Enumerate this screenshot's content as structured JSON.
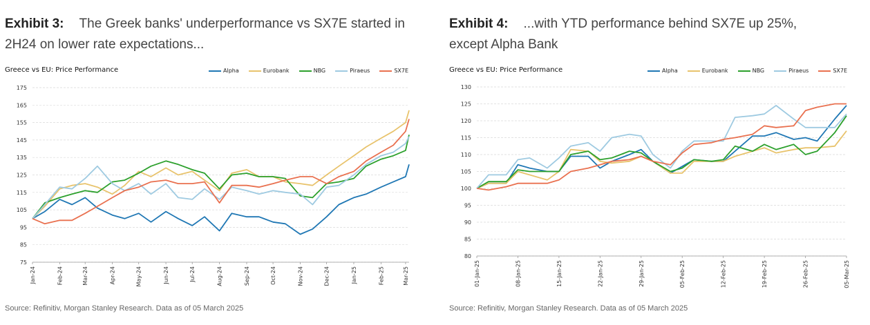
{
  "exhibits": [
    {
      "number": "Exhibit 3:",
      "heading": "The Greek banks' underperformance vs SX7E started in 2H24 on lower rate expectations...",
      "source": "Source: Refinitiv, Morgan Stanley Research. Data as of 05 March 2025"
    },
    {
      "number": "Exhibit 4:",
      "heading": "...with YTD performance behind SX7E up 25%, except Alpha Bank",
      "source": "Source: Refinitiv, Morgan Stanley Research. Data as of 05 March 2025"
    }
  ],
  "chart_data": [
    {
      "type": "line",
      "title": "Greece vs EU: Price Performance",
      "legend_position": "top-right",
      "grid": true,
      "ylim": [
        75,
        175
      ],
      "yticks": [
        75,
        85,
        95,
        105,
        115,
        125,
        135,
        145,
        155,
        165,
        175
      ],
      "x_ticks": [
        "Jan-24",
        "Feb-24",
        "Mar-24",
        "Apr-24",
        "May-24",
        "Jun-24",
        "Jul-24",
        "Aug-24",
        "Sep-24",
        "Oct-24",
        "Nov-24",
        "Dec-24",
        "Jan-25",
        "Feb-25",
        "Mar-25"
      ],
      "x": [
        "2024-01-01",
        "2024-01-15",
        "2024-02-01",
        "2024-02-15",
        "2024-03-01",
        "2024-03-15",
        "2024-04-01",
        "2024-04-15",
        "2024-05-01",
        "2024-05-15",
        "2024-06-01",
        "2024-06-15",
        "2024-07-01",
        "2024-07-15",
        "2024-08-01",
        "2024-08-15",
        "2024-09-01",
        "2024-09-15",
        "2024-10-01",
        "2024-10-15",
        "2024-11-01",
        "2024-11-15",
        "2024-12-01",
        "2024-12-15",
        "2025-01-01",
        "2025-01-15",
        "2025-02-01",
        "2025-02-15",
        "2025-03-01",
        "2025-03-05"
      ],
      "series": [
        {
          "name": "Alpha",
          "color": "#1f77b4",
          "values": [
            100,
            104,
            111,
            108,
            112,
            106,
            102,
            100,
            103,
            98,
            104,
            100,
            96,
            101,
            93,
            103,
            101,
            101,
            98,
            97,
            91,
            94,
            101,
            108,
            112,
            114,
            118,
            121,
            124,
            131
          ]
        },
        {
          "name": "Eurobank",
          "color": "#e8c36c",
          "values": [
            100,
            107,
            117,
            119,
            120,
            118,
            114,
            119,
            127,
            124,
            129,
            125,
            127,
            122,
            116,
            126,
            128,
            124,
            124,
            121,
            120,
            119,
            125,
            130,
            136,
            141,
            146,
            150,
            155,
            162
          ]
        },
        {
          "name": "NBG",
          "color": "#2ca02c",
          "values": [
            100,
            109,
            112,
            114,
            116,
            115,
            121,
            122,
            126,
            130,
            133,
            131,
            128,
            126,
            117,
            125,
            126,
            124,
            124,
            123,
            113,
            112,
            120,
            121,
            123,
            130,
            134,
            136,
            139,
            148
          ]
        },
        {
          "name": "Piraeus",
          "color": "#9ecae1",
          "values": [
            100,
            108,
            118,
            117,
            123,
            130,
            120,
            116,
            120,
            114,
            120,
            112,
            111,
            117,
            111,
            118,
            116,
            114,
            116,
            115,
            114,
            108,
            118,
            119,
            125,
            131,
            136,
            138,
            143,
            147
          ]
        },
        {
          "name": "SX7E",
          "color": "#e9704f",
          "values": [
            100,
            97,
            99,
            99,
            103,
            107,
            112,
            116,
            118,
            121,
            122,
            120,
            120,
            121,
            109,
            119,
            119,
            118,
            120,
            122,
            124,
            124,
            120,
            124,
            127,
            133,
            138,
            142,
            150,
            157
          ]
        }
      ]
    },
    {
      "type": "line",
      "title": "Greece vs EU: Price Performance",
      "legend_position": "top-right",
      "grid": true,
      "ylim": [
        80,
        130
      ],
      "yticks": [
        80,
        85,
        90,
        95,
        100,
        105,
        110,
        115,
        120,
        125,
        130
      ],
      "x_ticks": [
        "01-Jan-25",
        "08-Jan-25",
        "15-Jan-25",
        "22-Jan-25",
        "29-Jan-25",
        "05-Feb-25",
        "12-Feb-25",
        "19-Feb-25",
        "26-Feb-25",
        "05-Mar-25"
      ],
      "x": [
        "2025-01-01",
        "2025-01-03",
        "2025-01-06",
        "2025-01-08",
        "2025-01-10",
        "2025-01-13",
        "2025-01-15",
        "2025-01-17",
        "2025-01-20",
        "2025-01-22",
        "2025-01-24",
        "2025-01-27",
        "2025-01-29",
        "2025-01-31",
        "2025-02-03",
        "2025-02-05",
        "2025-02-07",
        "2025-02-10",
        "2025-02-12",
        "2025-02-14",
        "2025-02-17",
        "2025-02-19",
        "2025-02-21",
        "2025-02-24",
        "2025-02-26",
        "2025-02-28",
        "2025-03-03",
        "2025-03-05"
      ],
      "series": [
        {
          "name": "Alpha",
          "color": "#1f77b4",
          "values": [
            100,
            101.5,
            101.5,
            107,
            106,
            105,
            105,
            109.5,
            109.5,
            106,
            108,
            110,
            111.5,
            108,
            104.5,
            106.5,
            108.5,
            108,
            108,
            111,
            115.5,
            115.5,
            116.5,
            114.5,
            115,
            114,
            120.5,
            124.5
          ]
        },
        {
          "name": "Eurobank",
          "color": "#e8c36c",
          "values": [
            100,
            101.5,
            101.5,
            105,
            104,
            102.5,
            105,
            111.5,
            111,
            108,
            107.5,
            108,
            109.5,
            108,
            104.5,
            104.5,
            108,
            108,
            108,
            109.5,
            111,
            112,
            110.5,
            111.5,
            112,
            112,
            112.5,
            117
          ]
        },
        {
          "name": "NBG",
          "color": "#2ca02c",
          "values": [
            100,
            102,
            102,
            105.5,
            105,
            105,
            105,
            110,
            111,
            108.5,
            109,
            111,
            110.5,
            108,
            105,
            106,
            108.5,
            108,
            108.5,
            112.5,
            111,
            113,
            111.5,
            113,
            110,
            111,
            116.5,
            121.5
          ]
        },
        {
          "name": "Piraeus",
          "color": "#9ecae1",
          "values": [
            100,
            104,
            104,
            108.5,
            109,
            106,
            109,
            112.5,
            113.5,
            111,
            115,
            116,
            115.5,
            110,
            106,
            111,
            114,
            114,
            114,
            121,
            121.5,
            122,
            124.5,
            120.5,
            118,
            118,
            118,
            122
          ]
        },
        {
          "name": "SX7E",
          "color": "#e9704f",
          "values": [
            100,
            99.5,
            100.5,
            101.5,
            101.5,
            101.5,
            102.5,
            105,
            106,
            107,
            108,
            108.5,
            109.5,
            108,
            107,
            110.5,
            113,
            113.5,
            114.5,
            115,
            116,
            118.5,
            118,
            118.5,
            123,
            124,
            125,
            125
          ]
        }
      ]
    }
  ]
}
